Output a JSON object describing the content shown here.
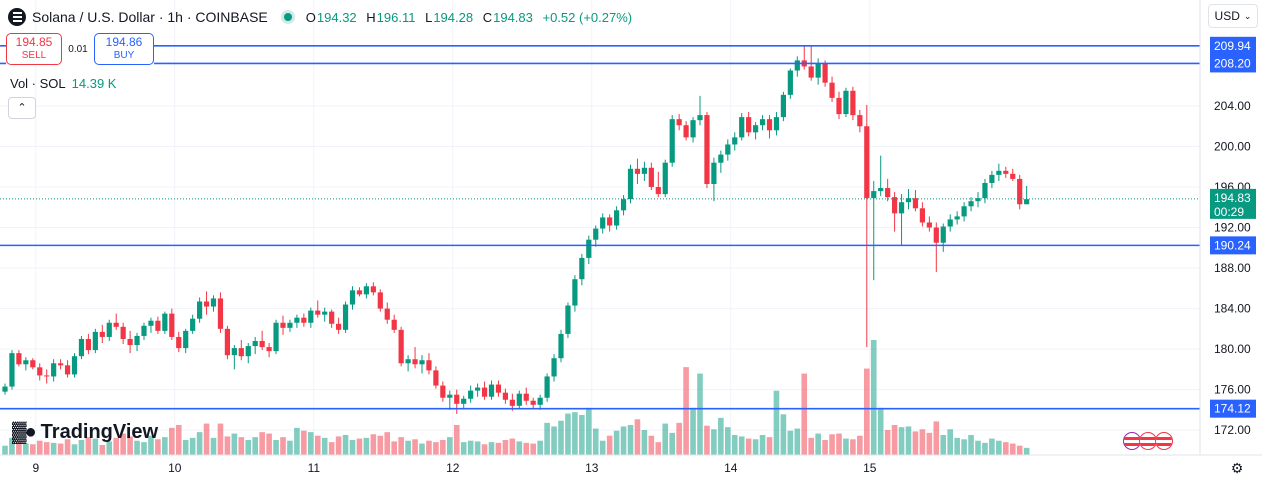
{
  "symbol": {
    "title": "Solana / U.S. Dollar · 1h · COINBASE",
    "icon": "solana-icon"
  },
  "ohlc": {
    "o_label": "O",
    "o": "194.32",
    "h_label": "H",
    "h": "196.11",
    "l_label": "L",
    "l": "194.28",
    "c_label": "C",
    "c": "194.83",
    "change": "+0.52 (+0.27%)"
  },
  "trade": {
    "sell_price": "194.85",
    "sell_label": "SELL",
    "spread": "0.01",
    "buy_price": "194.86",
    "buy_label": "BUY"
  },
  "volume": {
    "label": "Vol · SOL",
    "value": "14.39 K"
  },
  "currency": "USD",
  "branding": "TradingView",
  "colors": {
    "up": "#089981",
    "down": "#f23645",
    "hline": "#2962ff",
    "grid": "#f0f3fa"
  },
  "chart_data": {
    "type": "candlestick",
    "y_axis": {
      "min": 170,
      "max": 212,
      "ticks": [
        "172.00",
        "176.00",
        "180.00",
        "184.00",
        "188.00",
        "192.00",
        "196.00",
        "200.00",
        "204.00"
      ]
    },
    "x_axis": {
      "ticks": [
        {
          "label": "9",
          "index": 4
        },
        {
          "label": "10",
          "index": 24
        },
        {
          "label": "11",
          "index": 44
        },
        {
          "label": "12",
          "index": 64
        },
        {
          "label": "13",
          "index": 84
        },
        {
          "label": "14",
          "index": 104
        },
        {
          "label": "15",
          "index": 124
        }
      ]
    },
    "horizontal_lines": [
      "209.94",
      "208.20",
      "190.24",
      "174.12"
    ],
    "last_price": {
      "value": "194.83",
      "countdown": "00:29"
    },
    "ohlc": [
      [
        175.8,
        176.6,
        175.5,
        176.3
      ],
      [
        176.3,
        179.9,
        176.0,
        179.6
      ],
      [
        179.6,
        179.9,
        178.3,
        178.5
      ],
      [
        178.5,
        179.2,
        177.9,
        178.9
      ],
      [
        178.9,
        179.1,
        178.0,
        178.2
      ],
      [
        178.2,
        178.6,
        176.9,
        177.4
      ],
      [
        177.4,
        178.0,
        176.6,
        177.3
      ],
      [
        177.3,
        179.0,
        176.8,
        178.6
      ],
      [
        178.6,
        179.0,
        178.0,
        178.4
      ],
      [
        178.4,
        178.9,
        177.2,
        177.5
      ],
      [
        177.5,
        179.6,
        177.2,
        179.3
      ],
      [
        179.3,
        181.3,
        179.0,
        181.0
      ],
      [
        181.0,
        181.5,
        179.5,
        179.9
      ],
      [
        179.9,
        182.0,
        179.6,
        181.7
      ],
      [
        181.7,
        182.4,
        180.6,
        181.2
      ],
      [
        181.2,
        182.9,
        180.8,
        182.6
      ],
      [
        182.6,
        183.5,
        181.9,
        182.2
      ],
      [
        182.2,
        182.6,
        180.5,
        181.0
      ],
      [
        181.0,
        181.8,
        179.6,
        180.4
      ],
      [
        180.4,
        181.6,
        179.8,
        181.3
      ],
      [
        181.3,
        182.6,
        180.9,
        182.3
      ],
      [
        182.3,
        183.1,
        181.6,
        182.8
      ],
      [
        182.8,
        183.2,
        181.5,
        181.8
      ],
      [
        181.8,
        183.7,
        181.5,
        183.5
      ],
      [
        183.5,
        184.0,
        180.9,
        181.2
      ],
      [
        181.2,
        181.7,
        179.7,
        180.1
      ],
      [
        180.1,
        182.0,
        179.6,
        181.8
      ],
      [
        181.8,
        183.4,
        181.5,
        183.0
      ],
      [
        183.0,
        185.1,
        182.6,
        184.7
      ],
      [
        184.7,
        185.7,
        183.4,
        184.2
      ],
      [
        184.2,
        185.3,
        183.7,
        185.0
      ],
      [
        185.0,
        185.6,
        181.6,
        182.0
      ],
      [
        182.0,
        182.3,
        179.0,
        179.4
      ],
      [
        179.4,
        180.4,
        178.0,
        180.1
      ],
      [
        180.1,
        180.9,
        178.9,
        179.3
      ],
      [
        179.3,
        180.6,
        178.6,
        180.3
      ],
      [
        180.3,
        181.2,
        179.5,
        180.8
      ],
      [
        180.8,
        181.8,
        179.9,
        180.2
      ],
      [
        180.2,
        180.6,
        179.2,
        179.8
      ],
      [
        179.8,
        182.9,
        179.5,
        182.6
      ],
      [
        182.6,
        183.3,
        181.4,
        182.1
      ],
      [
        182.1,
        182.9,
        181.7,
        182.6
      ],
      [
        182.6,
        183.4,
        182.1,
        183.1
      ],
      [
        183.1,
        183.5,
        182.2,
        182.6
      ],
      [
        182.6,
        184.1,
        182.1,
        183.8
      ],
      [
        183.8,
        184.8,
        183.1,
        183.4
      ],
      [
        183.4,
        184.1,
        182.7,
        183.7
      ],
      [
        183.7,
        183.9,
        182.1,
        182.5
      ],
      [
        182.5,
        183.1,
        181.5,
        181.9
      ],
      [
        181.9,
        184.7,
        181.6,
        184.4
      ],
      [
        184.4,
        186.2,
        183.9,
        185.8
      ],
      [
        185.8,
        186.1,
        185.2,
        185.4
      ],
      [
        185.4,
        186.5,
        185.0,
        186.2
      ],
      [
        186.2,
        186.6,
        185.3,
        185.6
      ],
      [
        185.6,
        185.9,
        183.7,
        184.0
      ],
      [
        184.0,
        184.6,
        182.5,
        182.9
      ],
      [
        182.9,
        183.4,
        181.6,
        181.9
      ],
      [
        181.9,
        182.2,
        178.3,
        178.6
      ],
      [
        178.6,
        179.4,
        177.8,
        179.0
      ],
      [
        179.0,
        180.2,
        178.1,
        178.5
      ],
      [
        178.5,
        179.4,
        177.6,
        178.9
      ],
      [
        178.9,
        179.6,
        177.5,
        177.9
      ],
      [
        177.9,
        178.3,
        176.1,
        176.4
      ],
      [
        176.4,
        176.8,
        174.8,
        175.2
      ],
      [
        175.2,
        175.9,
        174.0,
        175.5
      ],
      [
        175.5,
        176.0,
        173.6,
        174.6
      ],
      [
        174.6,
        175.4,
        174.1,
        175.1
      ],
      [
        175.1,
        176.4,
        174.7,
        175.9
      ],
      [
        175.9,
        176.6,
        175.3,
        176.2
      ],
      [
        176.2,
        176.8,
        175.0,
        175.3
      ],
      [
        175.3,
        176.9,
        175.0,
        176.5
      ],
      [
        176.5,
        176.9,
        175.3,
        175.7
      ],
      [
        175.7,
        176.1,
        174.6,
        175.0
      ],
      [
        175.0,
        175.6,
        173.9,
        174.4
      ],
      [
        174.4,
        175.9,
        174.1,
        175.6
      ],
      [
        175.6,
        176.2,
        174.5,
        174.9
      ],
      [
        174.9,
        175.2,
        174.1,
        174.5
      ],
      [
        174.5,
        175.5,
        174.0,
        175.2
      ],
      [
        175.2,
        177.6,
        174.8,
        177.3
      ],
      [
        177.3,
        179.5,
        176.8,
        179.1
      ],
      [
        179.1,
        181.9,
        178.7,
        181.5
      ],
      [
        181.5,
        184.6,
        181.1,
        184.3
      ],
      [
        184.3,
        187.3,
        183.7,
        186.9
      ],
      [
        186.9,
        189.4,
        186.3,
        189.0
      ],
      [
        189.0,
        191.2,
        188.4,
        190.8
      ],
      [
        190.8,
        192.2,
        190.1,
        191.9
      ],
      [
        191.9,
        193.4,
        191.4,
        193.0
      ],
      [
        193.0,
        193.3,
        191.6,
        192.2
      ],
      [
        192.2,
        194.1,
        191.8,
        193.7
      ],
      [
        193.7,
        195.2,
        193.2,
        194.8
      ],
      [
        194.8,
        198.2,
        194.4,
        197.8
      ],
      [
        197.8,
        198.8,
        196.3,
        197.3
      ],
      [
        197.3,
        198.5,
        196.6,
        197.9
      ],
      [
        197.9,
        198.4,
        195.7,
        196.0
      ],
      [
        196.0,
        197.5,
        195.0,
        195.3
      ],
      [
        195.3,
        198.7,
        195.0,
        198.4
      ],
      [
        198.4,
        203.1,
        198.0,
        202.7
      ],
      [
        202.7,
        203.2,
        201.6,
        202.1
      ],
      [
        202.1,
        202.5,
        200.6,
        200.9
      ],
      [
        200.9,
        202.9,
        200.4,
        202.6
      ],
      [
        202.6,
        205.0,
        202.1,
        203.1
      ],
      [
        203.1,
        203.4,
        195.9,
        196.3
      ],
      [
        196.3,
        198.9,
        194.6,
        198.4
      ],
      [
        198.4,
        199.6,
        197.4,
        199.2
      ],
      [
        199.2,
        200.7,
        198.6,
        200.2
      ],
      [
        200.2,
        201.4,
        199.6,
        200.9
      ],
      [
        200.9,
        203.3,
        200.6,
        202.9
      ],
      [
        202.9,
        203.4,
        201.0,
        201.4
      ],
      [
        201.4,
        202.4,
        200.7,
        202.1
      ],
      [
        202.1,
        203.1,
        201.6,
        202.7
      ],
      [
        202.7,
        203.1,
        200.8,
        201.6
      ],
      [
        201.6,
        203.4,
        201.1,
        202.9
      ],
      [
        202.9,
        205.4,
        202.5,
        205.1
      ],
      [
        205.1,
        207.7,
        204.7,
        207.5
      ],
      [
        207.5,
        208.9,
        206.9,
        208.5
      ],
      [
        208.5,
        209.9,
        207.6,
        207.9
      ],
      [
        207.9,
        210.0,
        206.5,
        206.8
      ],
      [
        206.8,
        208.7,
        206.1,
        208.2
      ],
      [
        208.2,
        208.5,
        205.9,
        206.3
      ],
      [
        206.3,
        206.9,
        204.4,
        204.8
      ],
      [
        204.8,
        205.4,
        202.7,
        203.2
      ],
      [
        203.2,
        205.8,
        202.9,
        205.5
      ],
      [
        205.5,
        205.9,
        202.6,
        203.1
      ],
      [
        203.1,
        203.6,
        201.4,
        202.0
      ],
      [
        202.0,
        204.1,
        180.2,
        194.9
      ],
      [
        194.9,
        196.6,
        186.8,
        195.6
      ],
      [
        195.6,
        199.1,
        195.1,
        195.9
      ],
      [
        195.9,
        196.8,
        194.6,
        195.0
      ],
      [
        195.0,
        195.5,
        191.6,
        193.4
      ],
      [
        193.4,
        195.3,
        190.2,
        194.5
      ],
      [
        194.5,
        195.8,
        193.8,
        194.9
      ],
      [
        194.9,
        195.7,
        193.6,
        193.9
      ],
      [
        193.9,
        194.5,
        192.1,
        192.5
      ],
      [
        192.5,
        193.1,
        191.6,
        192.0
      ],
      [
        192.0,
        192.5,
        187.6,
        190.5
      ],
      [
        190.5,
        192.4,
        189.6,
        192.1
      ],
      [
        192.1,
        193.3,
        191.6,
        192.8
      ],
      [
        192.8,
        193.6,
        192.3,
        193.1
      ],
      [
        193.1,
        194.5,
        192.6,
        194.1
      ],
      [
        194.1,
        195.0,
        193.6,
        194.6
      ],
      [
        194.6,
        195.5,
        194.0,
        194.9
      ],
      [
        194.9,
        196.8,
        194.4,
        196.4
      ],
      [
        196.4,
        197.6,
        195.9,
        197.2
      ],
      [
        197.2,
        198.3,
        196.6,
        197.6
      ],
      [
        197.6,
        198.0,
        196.9,
        197.3
      ],
      [
        197.3,
        197.8,
        196.6,
        196.8
      ],
      [
        196.8,
        197.2,
        193.8,
        194.3
      ],
      [
        194.3,
        196.1,
        194.3,
        194.8
      ]
    ],
    "volume": [
      1.3,
      2.4,
      1.8,
      1.6,
      1.5,
      2.0,
      1.8,
      1.7,
      1.6,
      2.2,
      1.5,
      2.1,
      2.5,
      2.3,
      1.4,
      1.9,
      2.4,
      3.0,
      2.6,
      2.0,
      1.8,
      2.7,
      2.2,
      2.5,
      3.8,
      4.2,
      2.1,
      2.4,
      3.2,
      4.4,
      2.4,
      4.4,
      2.6,
      3.0,
      2.5,
      2.1,
      2.5,
      3.2,
      3.0,
      2.1,
      2.5,
      2.0,
      3.8,
      3.4,
      3.2,
      2.7,
      2.4,
      1.8,
      2.6,
      2.8,
      2.1,
      2.3,
      2.4,
      2.9,
      2.7,
      3.2,
      1.9,
      2.5,
      2.0,
      2.2,
      1.6,
      2.0,
      1.8,
      2.1,
      2.5,
      4.2,
      1.8,
      2.0,
      1.9,
      1.5,
      1.8,
      1.7,
      2.1,
      2.3,
      1.9,
      1.7,
      1.6,
      2.0,
      4.5,
      4.0,
      4.8,
      5.8,
      6.0,
      5.6,
      6.6,
      3.7,
      2.0,
      2.7,
      3.4,
      4.0,
      4.2,
      5.0,
      3.5,
      2.7,
      1.8,
      4.4,
      3.1,
      4.5,
      12.3,
      6.6,
      11.4,
      4.1,
      3.6,
      5.2,
      3.9,
      2.8,
      2.6,
      2.3,
      2.2,
      2.8,
      2.5,
      9.0,
      5.7,
      3.4,
      3.7,
      11.4,
      2.4,
      3.0,
      2.1,
      2.9,
      3.0,
      2.3,
      2.2,
      2.7,
      12.1,
      16.1,
      6.6,
      3.5,
      4.2,
      3.9,
      4.0,
      3.3,
      3.6,
      3.1,
      4.7,
      2.8,
      3.6,
      2.4,
      2.2,
      2.8,
      2.0,
      1.7,
      2.3,
      2.0,
      1.8,
      1.6,
      1.3,
      1.0
    ]
  }
}
